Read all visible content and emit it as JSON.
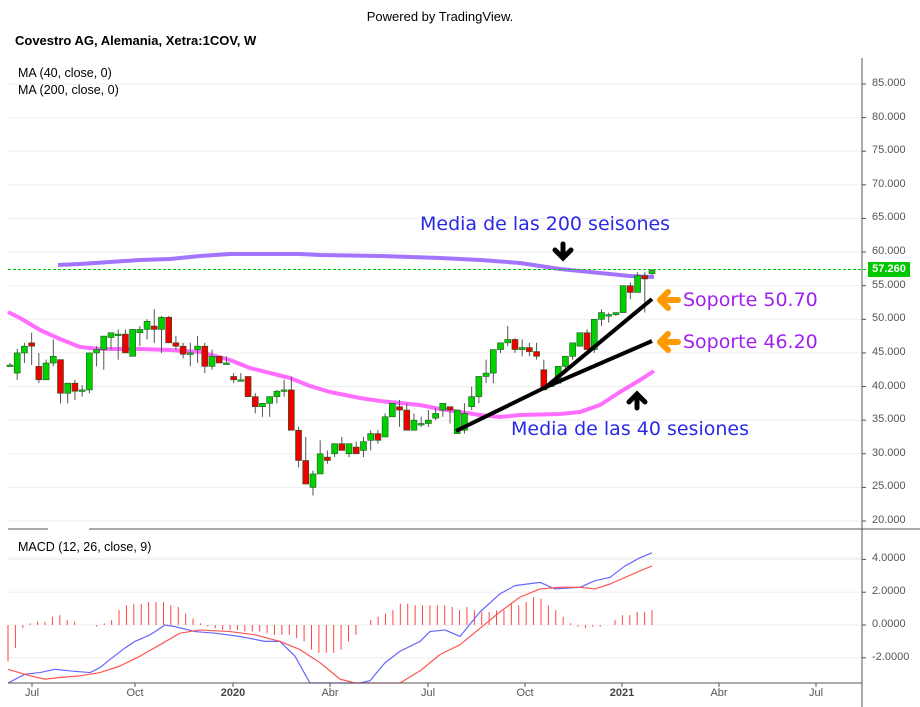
{
  "header": {
    "powered_by": "Powered by TradingView.",
    "title": "Covestro AG, Alemania, Xetra:1COV, W"
  },
  "legend": {
    "ma40": "MA (40, close, 0)",
    "ma200": "MA (200, close, 0)",
    "macd": "MACD (12, 26, close, 9)"
  },
  "price_axis": {
    "labels": [
      "85.000",
      "80.000",
      "75.000",
      "70.000",
      "65.000",
      "60.000",
      "55.000",
      "50.000",
      "45.000",
      "40.000",
      "35.000",
      "30.000",
      "25.000",
      "20.000"
    ],
    "last_price": "57.260",
    "last_price_color": "#00c800"
  },
  "macd_axis": {
    "labels": [
      "4.0000",
      "2.0000",
      "0.0000",
      "-2.0000"
    ]
  },
  "time_axis": {
    "labels": [
      "Jul",
      "Oct",
      "2020",
      "Abr",
      "Jul",
      "Oct",
      "2021",
      "Abr",
      "Jul"
    ]
  },
  "annotations": {
    "ma200_note": "Media de las 200 seisones",
    "ma40_note": "Media de las 40 sesiones",
    "support1": "Soporte 50.70",
    "support2": "Soporte 46.20"
  },
  "colors": {
    "up": "#00d000",
    "down": "#ee0000",
    "ma40": "#ff55ff",
    "ma200": "#9966ff",
    "macd_line": "#6666ff",
    "signal_line": "#ff5555",
    "histogram": "#ff4444",
    "arrow": "#ff9900"
  },
  "chart_data": [
    {
      "type": "candlestick",
      "title": "Covestro AG, Alemania, Xetra:1COV, W",
      "x": [
        "Jun 2019",
        "Jul 2019",
        "Aug 2019",
        "Sep 2019",
        "Oct 2019",
        "Nov 2019",
        "Dec 2019",
        "Jan 2020",
        "Feb 2020",
        "Mar 2020",
        "Apr 2020",
        "May 2020",
        "Jun 2020",
        "Jul 2020",
        "Aug 2020",
        "Sep 2020",
        "Oct 2020",
        "Nov 2020",
        "Dec 2020",
        "Jan 2021"
      ],
      "close_approx": [
        43.5,
        42.0,
        39.5,
        45.0,
        46.5,
        44.0,
        42.0,
        41.5,
        38.5,
        25.0,
        30.0,
        31.5,
        36.5,
        34.5,
        46.0,
        44.5,
        41.0,
        47.5,
        51.0,
        57.26
      ],
      "ylim": [
        20,
        85
      ],
      "yticks": [
        85,
        80,
        75,
        70,
        65,
        60,
        55,
        50,
        45,
        40,
        35,
        30,
        25,
        20
      ],
      "last_price": 57.26,
      "overlays": [
        {
          "name": "MA (40, close, 0)",
          "values_approx": [
            51,
            46,
            45.5,
            45.5,
            45.5,
            45,
            44,
            43,
            41,
            39,
            37.5,
            36,
            35.5,
            35.5,
            36,
            36,
            36.5,
            37.5,
            39.5,
            42.5
          ]
        },
        {
          "name": "MA (200, close, 0)",
          "values_approx": [
            null,
            57.5,
            58,
            58.5,
            59,
            59.5,
            59.5,
            59.5,
            59.5,
            59,
            58.8,
            58.7,
            58.5,
            58.3,
            58.2,
            58,
            57.8,
            57.2,
            56.5,
            56
          ]
        }
      ],
      "trendlines": [
        {
          "from": [
            "Jul 2020",
            33.5
          ],
          "to": [
            "Jan 2021",
            53.2
          ],
          "label": "Soporte 50.70"
        },
        {
          "from": [
            "Jul 2020",
            33.5
          ],
          "to": [
            "Jan 2021",
            46.8
          ],
          "label": "Soporte 46.20"
        }
      ],
      "annotations": [
        "Media de las 200 seisones",
        "Media de las 40 sesiones",
        "Soporte 50.70",
        "Soporte 46.20"
      ],
      "xlabels": [
        "Jul",
        "Oct",
        "2020",
        "Abr",
        "Jul",
        "Oct",
        "2021",
        "Abr",
        "Jul"
      ]
    },
    {
      "type": "line",
      "title": "MACD (12, 26, close, 9)",
      "x": [
        "Jun 2019",
        "Jul 2019",
        "Aug 2019",
        "Sep 2019",
        "Oct 2019",
        "Nov 2019",
        "Dec 2019",
        "Jan 2020",
        "Feb 2020",
        "Mar 2020",
        "Apr 2020",
        "May 2020",
        "Jun 2020",
        "Jul 2020",
        "Aug 2020",
        "Sep 2020",
        "Oct 2020",
        "Nov 2020",
        "Dec 2020",
        "Jan 2021"
      ],
      "series": [
        {
          "name": "MACD",
          "values_approx": [
            -3.4,
            -2.8,
            -2.9,
            -1.8,
            -0.6,
            0.0,
            -0.4,
            -0.7,
            -1.0,
            -3.8,
            -4.5,
            -3.0,
            -1.2,
            -0.5,
            1.2,
            2.7,
            2.2,
            2.5,
            3.3,
            4.4
          ]
        },
        {
          "name": "Signal",
          "values_approx": [
            -2.8,
            -3.1,
            -2.8,
            -2.4,
            -1.4,
            -0.4,
            -0.2,
            -0.5,
            -0.9,
            -2.0,
            -3.5,
            -3.8,
            -2.5,
            -1.2,
            0.0,
            1.8,
            2.4,
            2.5,
            2.8,
            3.6
          ]
        },
        {
          "name": "Histogram",
          "values_approx": [
            -0.7,
            0.3,
            0.5,
            0.6,
            1.1,
            0.5,
            -0.2,
            -0.2,
            -0.3,
            -1.7,
            -1.0,
            0.8,
            1.3,
            1.0,
            1.1,
            1.5,
            -0.2,
            0.3,
            0.8,
            0.9
          ]
        }
      ],
      "ylim": [
        -3.8,
        5.5
      ],
      "yticks": [
        4,
        2,
        0,
        -2
      ]
    }
  ]
}
